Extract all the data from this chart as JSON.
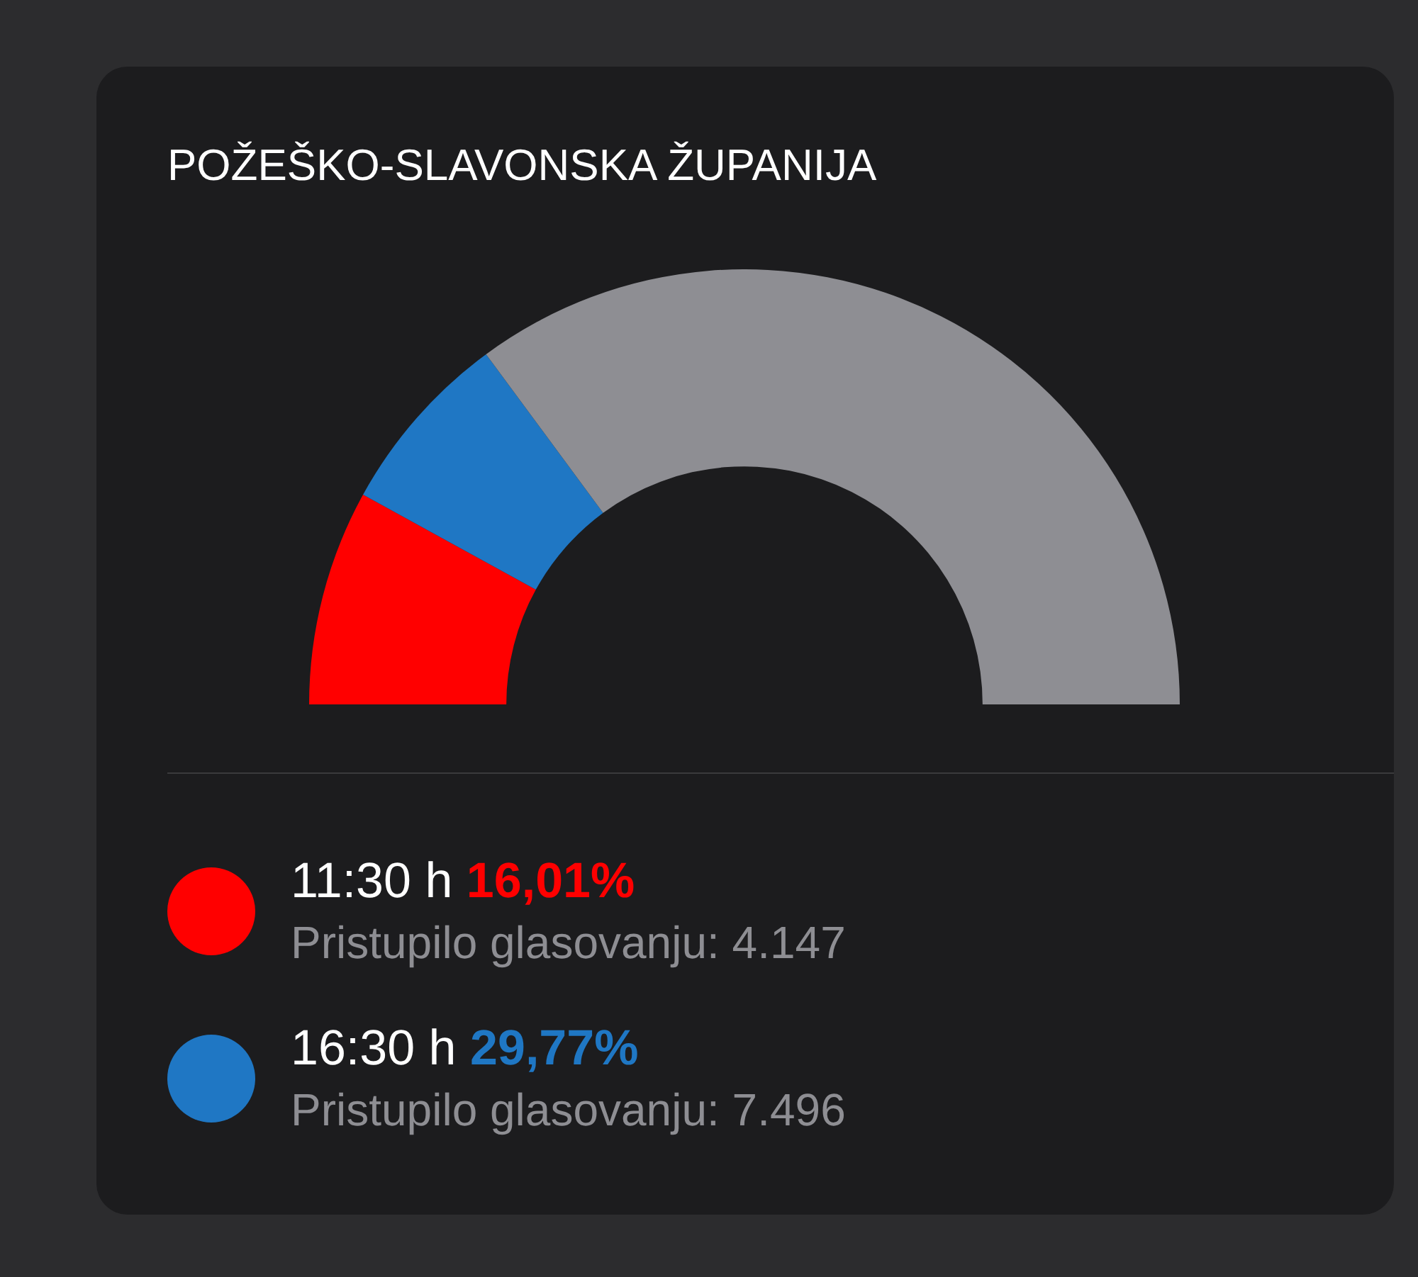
{
  "chart_data": {
    "type": "donut",
    "title": "POŽEŠKO-SLAVONSKA ŽUPANIJA",
    "categories": [
      "11:30 h",
      "16:30 h",
      null
    ],
    "values": [
      16.01,
      13.76,
      70.23
    ],
    "colors": [
      "#ff0000",
      "#1f77c4",
      "#8e8e93"
    ],
    "legend": "bottom",
    "annotations": [
      "16,01%",
      "Pristupilo glasovanju: 4.147",
      "29,77%",
      "Pristupilo glasovanju: 7.496"
    ]
  }
}
